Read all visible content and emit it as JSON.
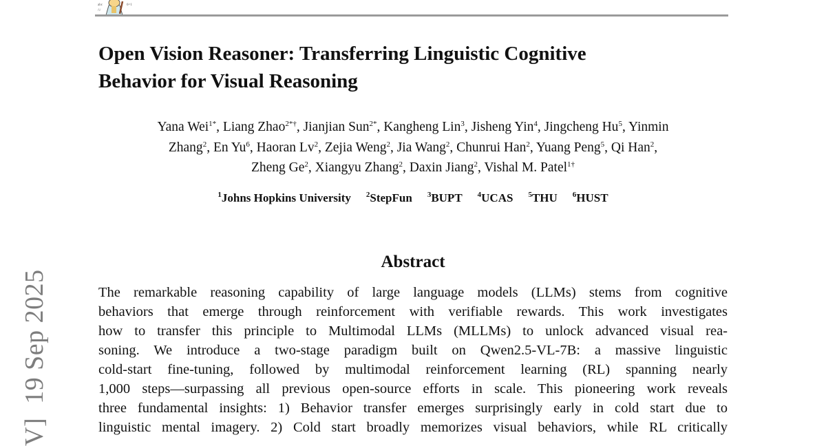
{
  "title_lines": [
    "Open Vision Reasoner: Transferring Linguistic Cognitive",
    "Behavior for Visual Reasoning"
  ],
  "authors_lines": [
    [
      [
        "Yana Wei",
        "1*"
      ],
      [
        ", Liang Zhao",
        "2*†"
      ],
      [
        ", Jianjian Sun",
        "2*"
      ],
      [
        ", Kangheng Lin",
        "3"
      ],
      [
        ", Jisheng Yin",
        "4"
      ],
      [
        ", Jingcheng Hu",
        "5"
      ],
      [
        ", Yinmin",
        ""
      ]
    ],
    [
      [
        "Zhang",
        "2"
      ],
      [
        ", En Yu",
        "6"
      ],
      [
        ", Haoran Lv",
        "2"
      ],
      [
        ", Zejia Weng",
        "2"
      ],
      [
        ", Jia Wang",
        "2"
      ],
      [
        ", Chunrui Han",
        "2"
      ],
      [
        ", Yuang Peng",
        "5"
      ],
      [
        ", Qi Han",
        "2"
      ],
      [
        ",",
        ""
      ]
    ],
    [
      [
        "Zheng Ge",
        "2"
      ],
      [
        ", Xiangyu Zhang",
        "2"
      ],
      [
        ", Daxin Jiang",
        "2"
      ],
      [
        ", Vishal M. Patel",
        "1†"
      ]
    ]
  ],
  "affiliations": [
    {
      "num": "1",
      "name": "Johns Hopkins University"
    },
    {
      "num": "2",
      "name": "StepFun"
    },
    {
      "num": "3",
      "name": "BUPT"
    },
    {
      "num": "4",
      "name": "UCAS"
    },
    {
      "num": "5",
      "name": "THU"
    },
    {
      "num": "6",
      "name": "HUST"
    }
  ],
  "abstract_heading": "Abstract",
  "abstract_lines": [
    "The remarkable reasoning capability of large language models (LLMs) stems from cognitive",
    "behaviors that emerge through reinforcement with verifiable rewards. This work investigates",
    "how to transfer this principle to Multimodal LLMs (MLLMs) to unlock advanced visual rea-",
    "soning.  We introduce a two-stage paradigm built on Qwen2.5-VL-7B: a massive linguistic",
    "cold-start fine-tuning, followed by multimodal reinforcement learning (RL) spanning nearly",
    "1,000 steps—surpassing all previous open-source efforts in scale. This pioneering work reveals",
    "three fundamental insights: 1) Behavior transfer emerges surprisingly early in cold start due to",
    "linguistic mental imagery. 2) Cold start broadly memorizes visual behaviors, while RL critically"
  ],
  "side_stamp": "V]  19 Sep 2025",
  "colors": {
    "rule": "#9a9a9a",
    "stamp": "#7d7d7d"
  }
}
